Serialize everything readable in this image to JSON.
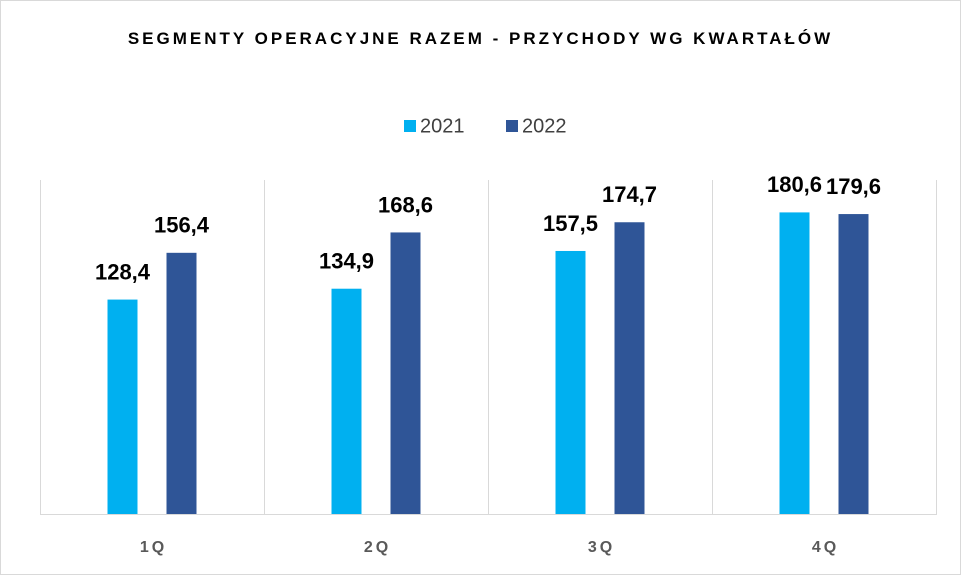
{
  "chart_data": {
    "type": "bar",
    "title": "SEGMENTY OPERACYJNE RAZEM - PRZYCHODY WG KWARTAŁÓW",
    "categories": [
      "1Q",
      "2Q",
      "3Q",
      "4Q"
    ],
    "series": [
      {
        "name": "2021",
        "color": "#00b0f0",
        "values": [
          128.4,
          134.9,
          157.5,
          180.6
        ],
        "value_labels": [
          "128,4",
          "134,9",
          "157,5",
          "180,6"
        ]
      },
      {
        "name": "2022",
        "color": "#2f5597",
        "values": [
          156.4,
          168.6,
          174.7,
          179.6
        ],
        "value_labels": [
          "156,4",
          "168,6",
          "174,7",
          "179,6"
        ]
      }
    ],
    "ylim": [
      0,
      200
    ],
    "legend": "top"
  }
}
